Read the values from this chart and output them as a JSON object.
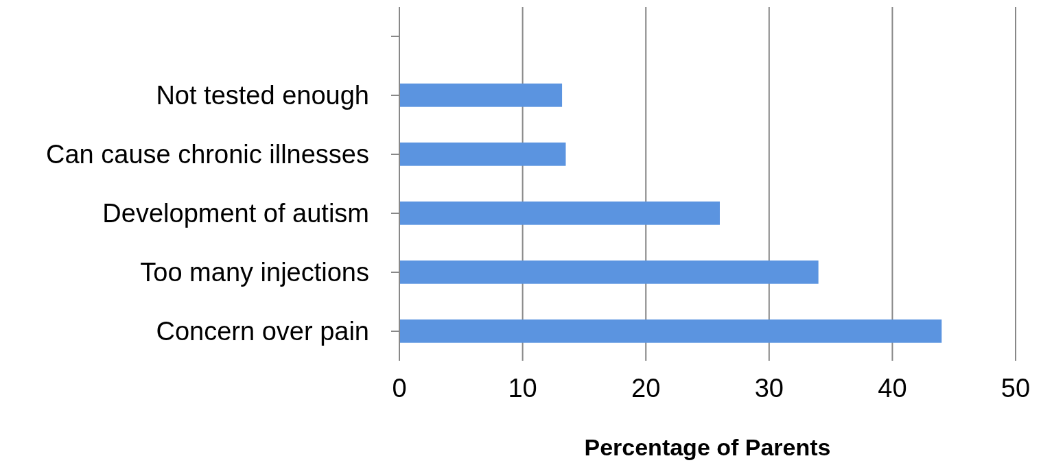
{
  "chart_data": {
    "type": "bar",
    "orientation": "horizontal",
    "xlabel": "Percentage of Parents",
    "categories": [
      null,
      "Not tested enough",
      "Can cause chronic illnesses",
      "Development of autism",
      "Too many injections",
      "Concern over pain"
    ],
    "values": [
      null,
      13.2,
      13.5,
      26,
      34,
      44
    ],
    "color": "#5b94e0",
    "xlim": [
      0,
      50
    ],
    "xticks": [
      0,
      10,
      20,
      30,
      40,
      50
    ],
    "grid": "x"
  }
}
